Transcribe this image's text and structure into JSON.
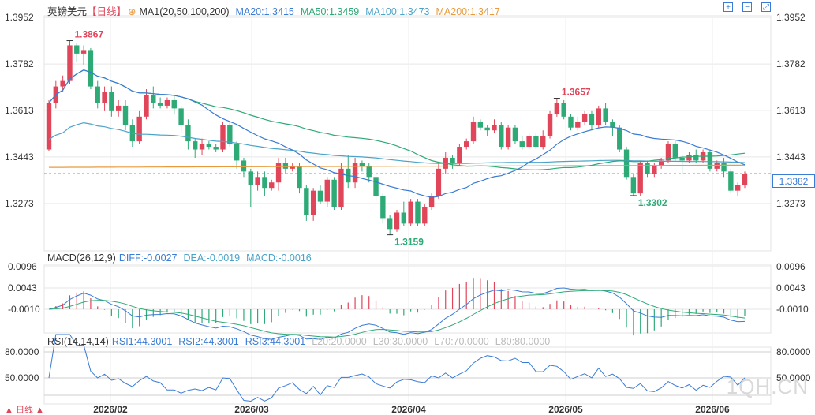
{
  "header": {
    "symbol": "英镑美元",
    "period": "【日线】",
    "ma_label": "MA1(20,50,100,200)",
    "ma20": "MA20:1.3415",
    "ma50": "MA50:1.3459",
    "ma100": "MA100:1.3473",
    "ma200": "MA200:1.3417",
    "macd_label": "MACD(26,12,9)",
    "diff": "DIFF:-0.0027",
    "dea": "DEA:-0.0019",
    "macd": "MACD:-0.0016",
    "rsi_label": "RSI(14,14,14)",
    "rsi1": "RSI1:44.3001",
    "rsi2": "RSI2:44.3001",
    "rsi3": "RSI3:44.3001",
    "l20": "L20:20.0000",
    "l30": "L30:30.0000",
    "l70": "L70:70.0000",
    "l80": "L80:80.0000"
  },
  "last_price": "1.3382",
  "watermark": "1QH.CN",
  "colors": {
    "up": "#e0455a",
    "down": "#2eaa77",
    "ma20": "#3a7bd5",
    "ma50": "#2eaa77",
    "ma100": "#4aa3c8",
    "ma200": "#e89a3c",
    "grid": "#e6e6e6"
  },
  "chart_data": [
    {
      "type": "candlestick",
      "title": "英镑美元 日线",
      "y_ticks": [
        "1.3952",
        "1.3782",
        "1.3613",
        "1.3443",
        "1.3273"
      ],
      "x_ticks": [
        "2026/02",
        "2026/03",
        "2026/04",
        "2026/05",
        "2026/06"
      ],
      "annotations": [
        {
          "text": "1.3867",
          "kind": "high"
        },
        {
          "text": "1.3159",
          "kind": "low"
        },
        {
          "text": "1.3657",
          "kind": "high"
        },
        {
          "text": "1.3302",
          "kind": "low"
        }
      ],
      "last_price": 1.3382,
      "ohlc": [
        [
          1.347,
          1.364,
          1.3465,
          1.365
        ],
        [
          1.364,
          1.37,
          1.362,
          1.372
        ],
        [
          1.37,
          1.372,
          1.368,
          1.374
        ],
        [
          1.372,
          1.385,
          1.371,
          1.3867
        ],
        [
          1.385,
          1.382,
          1.379,
          1.386
        ],
        [
          1.382,
          1.383,
          1.378,
          1.385
        ],
        [
          1.383,
          1.37,
          1.369,
          1.384
        ],
        [
          1.37,
          1.364,
          1.362,
          1.372
        ],
        [
          1.364,
          1.368,
          1.361,
          1.37
        ],
        [
          1.368,
          1.361,
          1.359,
          1.37
        ],
        [
          1.361,
          1.363,
          1.359,
          1.365
        ],
        [
          1.363,
          1.356,
          1.354,
          1.365
        ],
        [
          1.356,
          1.35,
          1.348,
          1.358
        ],
        [
          1.35,
          1.359,
          1.349,
          1.361
        ],
        [
          1.359,
          1.367,
          1.358,
          1.369
        ],
        [
          1.367,
          1.364,
          1.362,
          1.37
        ],
        [
          1.364,
          1.363,
          1.362,
          1.366
        ],
        [
          1.363,
          1.365,
          1.362,
          1.366
        ],
        [
          1.365,
          1.362,
          1.36,
          1.367
        ],
        [
          1.362,
          1.356,
          1.353,
          1.363
        ],
        [
          1.356,
          1.35,
          1.347,
          1.358
        ],
        [
          1.35,
          1.347,
          1.344,
          1.351
        ],
        [
          1.347,
          1.349,
          1.345,
          1.351
        ],
        [
          1.349,
          1.348,
          1.347,
          1.35
        ],
        [
          1.348,
          1.347,
          1.346,
          1.349
        ],
        [
          1.347,
          1.356,
          1.346,
          1.357
        ],
        [
          1.356,
          1.349,
          1.348,
          1.357
        ],
        [
          1.349,
          1.343,
          1.34,
          1.35
        ],
        [
          1.343,
          1.339,
          1.337,
          1.344
        ],
        [
          1.339,
          1.334,
          1.326,
          1.34
        ],
        [
          1.334,
          1.337,
          1.332,
          1.339
        ],
        [
          1.337,
          1.333,
          1.33,
          1.339
        ],
        [
          1.333,
          1.335,
          1.332,
          1.336
        ],
        [
          1.335,
          1.342,
          1.332,
          1.344
        ],
        [
          1.342,
          1.34,
          1.338,
          1.344
        ],
        [
          1.34,
          1.341,
          1.339,
          1.342
        ],
        [
          1.341,
          1.333,
          1.331,
          1.342
        ],
        [
          1.333,
          1.323,
          1.321,
          1.334
        ],
        [
          1.323,
          1.332,
          1.321,
          1.333
        ],
        [
          1.332,
          1.328,
          1.327,
          1.334
        ],
        [
          1.328,
          1.336,
          1.326,
          1.337
        ],
        [
          1.336,
          1.326,
          1.325,
          1.337
        ],
        [
          1.326,
          1.34,
          1.325,
          1.342
        ],
        [
          1.34,
          1.335,
          1.333,
          1.345
        ],
        [
          1.335,
          1.342,
          1.333,
          1.344
        ],
        [
          1.342,
          1.341,
          1.339,
          1.343
        ],
        [
          1.341,
          1.337,
          1.335,
          1.342
        ],
        [
          1.337,
          1.33,
          1.328,
          1.338
        ],
        [
          1.33,
          1.322,
          1.32,
          1.331
        ],
        [
          1.322,
          1.318,
          1.3159,
          1.323
        ],
        [
          1.318,
          1.324,
          1.317,
          1.325
        ],
        [
          1.324,
          1.32,
          1.319,
          1.328
        ],
        [
          1.32,
          1.328,
          1.319,
          1.329
        ],
        [
          1.328,
          1.32,
          1.319,
          1.329
        ],
        [
          1.32,
          1.326,
          1.319,
          1.327
        ],
        [
          1.326,
          1.33,
          1.325,
          1.331
        ],
        [
          1.33,
          1.34,
          1.329,
          1.342
        ],
        [
          1.34,
          1.344,
          1.338,
          1.346
        ],
        [
          1.344,
          1.342,
          1.34,
          1.345
        ],
        [
          1.342,
          1.348,
          1.341,
          1.349
        ],
        [
          1.348,
          1.35,
          1.347,
          1.351
        ],
        [
          1.35,
          1.357,
          1.349,
          1.359
        ],
        [
          1.357,
          1.355,
          1.354,
          1.358
        ],
        [
          1.355,
          1.354,
          1.352,
          1.356
        ],
        [
          1.354,
          1.356,
          1.353,
          1.358
        ],
        [
          1.356,
          1.348,
          1.347,
          1.357
        ],
        [
          1.348,
          1.355,
          1.347,
          1.356
        ],
        [
          1.355,
          1.35,
          1.349,
          1.356
        ],
        [
          1.35,
          1.348,
          1.347,
          1.352
        ],
        [
          1.348,
          1.352,
          1.347,
          1.353
        ],
        [
          1.352,
          1.348,
          1.347,
          1.353
        ],
        [
          1.348,
          1.352,
          1.347,
          1.354
        ],
        [
          1.352,
          1.36,
          1.351,
          1.361
        ],
        [
          1.36,
          1.364,
          1.359,
          1.3657
        ],
        [
          1.364,
          1.359,
          1.358,
          1.365
        ],
        [
          1.359,
          1.355,
          1.354,
          1.36
        ],
        [
          1.355,
          1.357,
          1.354,
          1.359
        ],
        [
          1.357,
          1.36,
          1.356,
          1.361
        ],
        [
          1.36,
          1.356,
          1.354,
          1.361
        ],
        [
          1.356,
          1.362,
          1.355,
          1.363
        ],
        [
          1.362,
          1.357,
          1.356,
          1.364
        ],
        [
          1.357,
          1.355,
          1.352,
          1.358
        ],
        [
          1.355,
          1.347,
          1.346,
          1.356
        ],
        [
          1.347,
          1.337,
          1.336,
          1.348
        ],
        [
          1.337,
          1.331,
          1.3302,
          1.338
        ],
        [
          1.331,
          1.342,
          1.33,
          1.343
        ],
        [
          1.342,
          1.338,
          1.337,
          1.343
        ],
        [
          1.338,
          1.341,
          1.337,
          1.342
        ],
        [
          1.341,
          1.343,
          1.34,
          1.344
        ],
        [
          1.343,
          1.349,
          1.342,
          1.35
        ],
        [
          1.349,
          1.344,
          1.343,
          1.35
        ],
        [
          1.344,
          1.343,
          1.338,
          1.345
        ],
        [
          1.343,
          1.345,
          1.342,
          1.346
        ],
        [
          1.345,
          1.343,
          1.342,
          1.347
        ],
        [
          1.343,
          1.346,
          1.342,
          1.347
        ],
        [
          1.346,
          1.34,
          1.339,
          1.347
        ],
        [
          1.34,
          1.342,
          1.339,
          1.343
        ],
        [
          1.342,
          1.339,
          1.337,
          1.344
        ],
        [
          1.339,
          1.332,
          1.331,
          1.34
        ],
        [
          1.332,
          1.334,
          1.33,
          1.335
        ],
        [
          1.334,
          1.3382,
          1.333,
          1.339
        ]
      ],
      "macd_axis": [
        "0.0096",
        "0.0043",
        "-0.0010"
      ],
      "rsi_axis": [
        "80.0000",
        "50.0000"
      ]
    }
  ]
}
